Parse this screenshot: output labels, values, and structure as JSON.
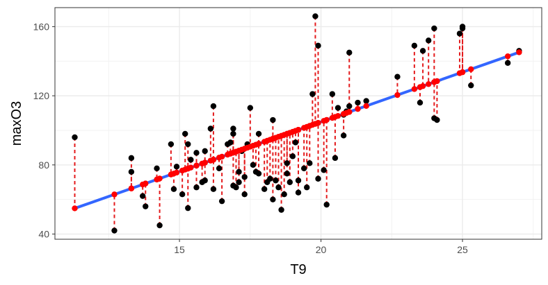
{
  "chart_data": {
    "type": "scatter",
    "title": "",
    "xlabel": "T9",
    "ylabel": "maxO3",
    "xlim": [
      10.6,
      27.8
    ],
    "ylim": [
      37,
      171
    ],
    "x_ticks": [
      15,
      20,
      25
    ],
    "y_ticks": [
      40,
      80,
      120,
      160
    ],
    "x_tick_labels": [
      "15",
      "20",
      "25"
    ],
    "y_tick_labels": [
      "40",
      "80",
      "120",
      "160"
    ],
    "grid": true,
    "legend": "none",
    "fit_line": {
      "intercept": -10.1,
      "slope": 5.75,
      "color": "#3366ff"
    },
    "colors": {
      "observed": "#000000",
      "fitted": "#ff0000",
      "residual": "#e41a1c",
      "fit": "#3366ff"
    },
    "series": [
      {
        "name": "",
        "values": [
          [
            11.3,
            96
          ],
          [
            12.7,
            42
          ],
          [
            13.3,
            84
          ],
          [
            13.3,
            76
          ],
          [
            13.7,
            62
          ],
          [
            13.8,
            56
          ],
          [
            14.2,
            78
          ],
          [
            14.3,
            45
          ],
          [
            14.7,
            92
          ],
          [
            14.8,
            66
          ],
          [
            14.9,
            79
          ],
          [
            15.1,
            63
          ],
          [
            15.2,
            98
          ],
          [
            15.3,
            92
          ],
          [
            15.3,
            55
          ],
          [
            15.4,
            83
          ],
          [
            15.6,
            87
          ],
          [
            15.6,
            67
          ],
          [
            15.8,
            70
          ],
          [
            15.9,
            88
          ],
          [
            15.9,
            71
          ],
          [
            16.1,
            101
          ],
          [
            16.2,
            114
          ],
          [
            16.2,
            66
          ],
          [
            16.4,
            78
          ],
          [
            16.5,
            59
          ],
          [
            16.7,
            92
          ],
          [
            16.8,
            93
          ],
          [
            16.9,
            101
          ],
          [
            16.9,
            98
          ],
          [
            16.9,
            68
          ],
          [
            17.0,
            67
          ],
          [
            17.1,
            76
          ],
          [
            17.1,
            70
          ],
          [
            17.2,
            88
          ],
          [
            17.3,
            73
          ],
          [
            17.3,
            63
          ],
          [
            17.4,
            92
          ],
          [
            17.5,
            113
          ],
          [
            17.6,
            80
          ],
          [
            17.7,
            76
          ],
          [
            17.8,
            98
          ],
          [
            17.8,
            75
          ],
          [
            18.0,
            66
          ],
          [
            18.1,
            70
          ],
          [
            18.2,
            72
          ],
          [
            18.3,
            106
          ],
          [
            18.3,
            60
          ],
          [
            18.4,
            71
          ],
          [
            18.5,
            67
          ],
          [
            18.6,
            54
          ],
          [
            18.7,
            63
          ],
          [
            18.8,
            81
          ],
          [
            18.8,
            75
          ],
          [
            18.9,
            70
          ],
          [
            19.0,
            85
          ],
          [
            19.1,
            93
          ],
          [
            19.2,
            71
          ],
          [
            19.2,
            64
          ],
          [
            19.4,
            78
          ],
          [
            19.5,
            67
          ],
          [
            19.6,
            81
          ],
          [
            19.7,
            121
          ],
          [
            19.8,
            166
          ],
          [
            19.9,
            72
          ],
          [
            19.9,
            149
          ],
          [
            20.1,
            77
          ],
          [
            20.2,
            57
          ],
          [
            20.4,
            121
          ],
          [
            20.5,
            84
          ],
          [
            20.6,
            113
          ],
          [
            20.8,
            97
          ],
          [
            20.8,
            109
          ],
          [
            20.9,
            111
          ],
          [
            21.0,
            114
          ],
          [
            21.0,
            145
          ],
          [
            21.3,
            116
          ],
          [
            21.6,
            117
          ],
          [
            22.7,
            131
          ],
          [
            23.3,
            149
          ],
          [
            23.5,
            116
          ],
          [
            23.6,
            146
          ],
          [
            23.8,
            152
          ],
          [
            24.0,
            159
          ],
          [
            24.0,
            107
          ],
          [
            24.1,
            106
          ],
          [
            24.9,
            156
          ],
          [
            25.0,
            159
          ],
          [
            25.0,
            160
          ],
          [
            25.3,
            126
          ],
          [
            26.6,
            139
          ],
          [
            27.0,
            146
          ]
        ]
      }
    ]
  }
}
